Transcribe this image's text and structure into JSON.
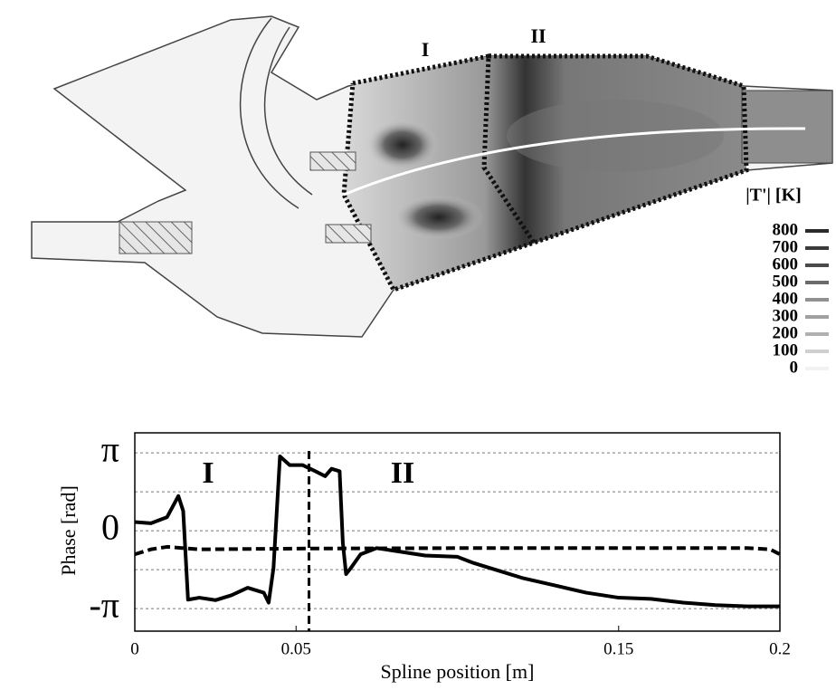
{
  "chart_data": [
    {
      "type": "contour",
      "annotations": [
        "I",
        "II"
      ],
      "colorbar": {
        "label": "|T'| [K]",
        "ticks": [
          800,
          700,
          600,
          500,
          400,
          300,
          200,
          100,
          0
        ],
        "colors": [
          "#2a2a2a",
          "#3a3a3a",
          "#4a4a4a",
          "#6a6a6a",
          "#909090",
          "#a0a0a0",
          "#b0b0b0",
          "#cfcfcf",
          "#f2f2f2"
        ]
      }
    },
    {
      "type": "line",
      "xlabel": "Spline position [m]",
      "ylabel": "Phase [rad]",
      "annotations": [
        "I",
        "II"
      ],
      "vline": 0.054,
      "xlim": [
        0,
        0.2
      ],
      "xticks": [
        0,
        0.05,
        0.15,
        0.2
      ],
      "ylim": [
        -4.05,
        3.95
      ],
      "yticks": [
        {
          "value": 3.1416,
          "label": "π"
        },
        {
          "value": 1.5708,
          "label": null
        },
        0,
        {
          "value": -1.5708,
          "label": null
        },
        {
          "value": -3.1416,
          "label": "-π"
        }
      ],
      "grid": true,
      "series": [
        {
          "color": "#000000",
          "style": "solid",
          "x": [
            0,
            0.005,
            0.01,
            0.0135,
            0.015,
            0.0165,
            0.02,
            0.025,
            0.03,
            0.035,
            0.04,
            0.0415,
            0.043,
            0.045,
            0.048,
            0.052,
            0.056,
            0.059,
            0.061,
            0.0635,
            0.0645,
            0.0655,
            0.067,
            0.07,
            0.075,
            0.08,
            0.09,
            0.1,
            0.105,
            0.11,
            0.12,
            0.13,
            0.14,
            0.15,
            0.16,
            0.17,
            0.18,
            0.19,
            0.2
          ],
          "values": [
            0.35,
            0.3,
            0.55,
            1.4,
            0.8,
            -2.78,
            -2.7,
            -2.8,
            -2.6,
            -2.3,
            -2.5,
            -2.9,
            -1.5,
            3.0,
            2.65,
            2.65,
            2.4,
            2.2,
            2.5,
            2.4,
            -0.5,
            -1.75,
            -1.5,
            -0.95,
            -0.7,
            -0.8,
            -1.0,
            -1.05,
            -1.3,
            -1.5,
            -1.9,
            -2.2,
            -2.5,
            -2.7,
            -2.75,
            -2.9,
            -3.0,
            -3.05,
            -3.05
          ]
        },
        {
          "color": "#000000",
          "style": "dashed",
          "x": [
            0,
            0.005,
            0.01,
            0.02,
            0.05,
            0.1,
            0.15,
            0.19,
            0.197,
            0.2
          ],
          "values": [
            -0.95,
            -0.75,
            -0.65,
            -0.75,
            -0.72,
            -0.7,
            -0.7,
            -0.7,
            -0.75,
            -0.95
          ]
        }
      ]
    }
  ]
}
